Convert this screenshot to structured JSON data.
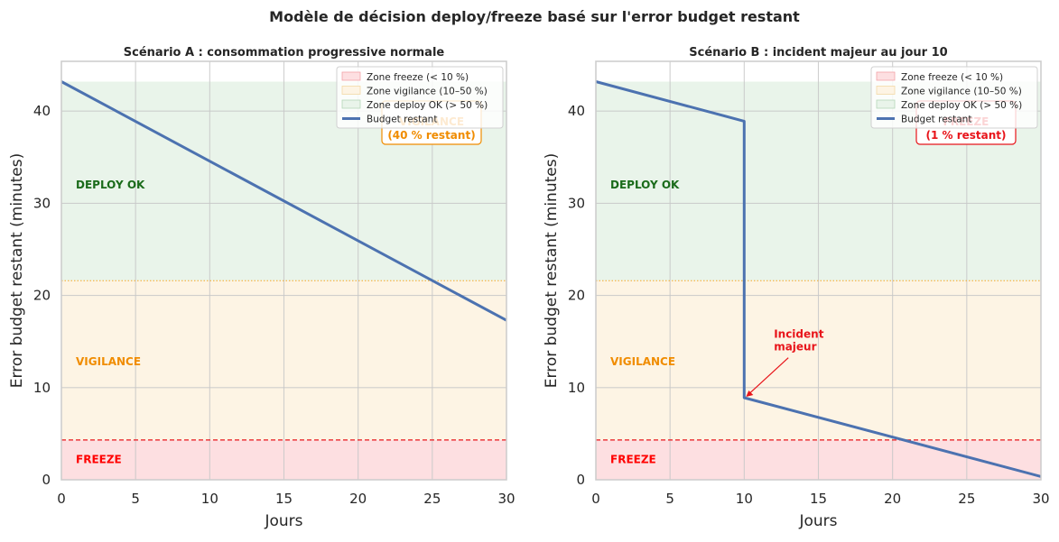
{
  "figure": {
    "title": "Modèle de décision deploy/freeze basé sur l'error budget restant"
  },
  "colors": {
    "freeze_fill": "#fddfe1",
    "vigilance_fill": "#fdf4e4",
    "deploy_fill": "#e9f4ea",
    "line": "#4c72b0",
    "freeze_line": "#e8141a",
    "vigilance_line": "#f5a623",
    "deploy_text": "#1a6b1a",
    "vigilance_text": "#f08c00",
    "freeze_text": "#ff0000",
    "grid": "#c8c8c8",
    "axis_bg_border": "#cccccc"
  },
  "chart_data": [
    {
      "type": "line",
      "title": "Scénario A : consommation progressive normale",
      "xlabel": "Jours",
      "ylabel": "Error budget restant (minutes)",
      "xlim": [
        0,
        30
      ],
      "ylim": [
        0,
        45.4
      ],
      "xticks": [
        "0",
        "5",
        "10",
        "15",
        "20",
        "25",
        "30"
      ],
      "xtick_values": [
        0,
        5,
        10,
        15,
        20,
        25,
        30
      ],
      "yticks": [
        "0",
        "10",
        "20",
        "30",
        "40"
      ],
      "ytick_values": [
        0,
        10,
        20,
        30,
        40
      ],
      "grid": true,
      "thresholds": {
        "freeze": 4.32,
        "vigilance": 21.6,
        "total": 43.2
      },
      "zone_labels": {
        "deploy": "DEPLOY OK",
        "vigilance": "VIGILANCE",
        "freeze": "FREEZE"
      },
      "legend": {
        "placement": "top-right",
        "entries": [
          "Zone freeze (< 10 %)",
          "Zone vigilance (10–50 %)",
          "Zone deploy OK (> 50 %)",
          "Budget restant"
        ]
      },
      "series": [
        {
          "name": "Budget restant",
          "x": [
            0,
            30
          ],
          "y": [
            43.2,
            17.3
          ]
        }
      ],
      "status_box": {
        "status": "VIGILANCE",
        "detail": "(40 % restant)",
        "kind": "vigilance"
      }
    },
    {
      "type": "line",
      "title": "Scénario B : incident majeur au jour 10",
      "xlabel": "Jours",
      "ylabel": "Error budget restant (minutes)",
      "xlim": [
        0,
        30
      ],
      "ylim": [
        0,
        45.4
      ],
      "xticks": [
        "0",
        "5",
        "10",
        "15",
        "20",
        "25",
        "30"
      ],
      "xtick_values": [
        0,
        5,
        10,
        15,
        20,
        25,
        30
      ],
      "yticks": [
        "0",
        "10",
        "20",
        "30",
        "40"
      ],
      "ytick_values": [
        0,
        10,
        20,
        30,
        40
      ],
      "grid": true,
      "thresholds": {
        "freeze": 4.32,
        "vigilance": 21.6,
        "total": 43.2
      },
      "zone_labels": {
        "deploy": "DEPLOY OK",
        "vigilance": "VIGILANCE",
        "freeze": "FREEZE"
      },
      "legend": {
        "placement": "top-right",
        "entries": [
          "Zone freeze (< 10 %)",
          "Zone vigilance (10–50 %)",
          "Zone deploy OK (> 50 %)",
          "Budget restant"
        ]
      },
      "series": [
        {
          "name": "Budget restant",
          "x": [
            0,
            10,
            10,
            30
          ],
          "y": [
            43.2,
            38.9,
            8.9,
            0.35
          ]
        }
      ],
      "annotation": {
        "text_lines": [
          "Incident",
          "majeur"
        ],
        "x": 10,
        "y": 8.9,
        "text_x": 12,
        "text_y": 15.2
      },
      "status_box": {
        "status": "FREEZE",
        "detail": "(1 % restant)",
        "kind": "freeze"
      }
    }
  ]
}
